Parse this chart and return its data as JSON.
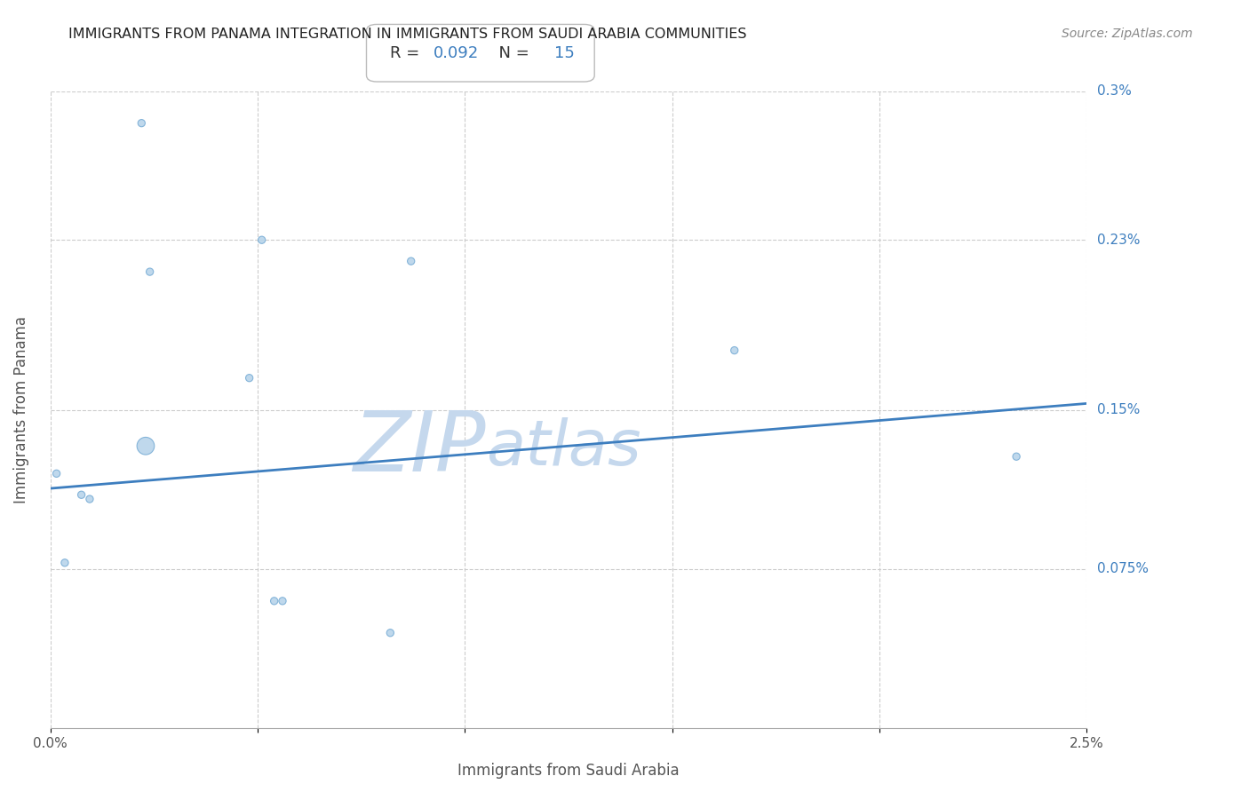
{
  "title": "IMMIGRANTS FROM PANAMA INTEGRATION IN IMMIGRANTS FROM SAUDI ARABIA COMMUNITIES",
  "source": "Source: ZipAtlas.com",
  "xlabel": "Immigrants from Saudi Arabia",
  "ylabel": "Immigrants from Panama",
  "xlim": [
    0.0,
    0.025
  ],
  "ylim": [
    0.0,
    0.003
  ],
  "R": "0.092",
  "N": "15",
  "scatter_x": [
    0.00015,
    0.00035,
    0.00075,
    0.00095,
    0.0022,
    0.0024,
    0.0048,
    0.0051,
    0.0054,
    0.0056,
    0.0082,
    0.0087,
    0.0165,
    0.0233,
    0.0023
  ],
  "scatter_y": [
    0.0012,
    0.00078,
    0.0011,
    0.00108,
    0.00285,
    0.00215,
    0.00165,
    0.0023,
    0.0006,
    0.0006,
    0.00045,
    0.0022,
    0.00178,
    0.00128,
    0.00133
  ],
  "scatter_sizes": [
    35,
    35,
    35,
    35,
    35,
    35,
    35,
    35,
    35,
    35,
    35,
    35,
    35,
    35,
    200
  ],
  "scatter_color": "#b8d4ea",
  "scatter_edgecolor": "#7aaed6",
  "trend_x_start": 0.0,
  "trend_x_end": 0.025,
  "trend_y_start": 0.00113,
  "trend_y_end": 0.00153,
  "trend_color": "#3d7ebf",
  "watermark_top": "ZIP",
  "watermark_bottom": "atlas",
  "watermark_color": "#c5d8ed",
  "background_color": "#ffffff",
  "grid_color": "#cccccc",
  "ytick_vals": [
    0.00075,
    0.0015,
    0.0023,
    0.003
  ],
  "ytick_labels": [
    "0.075%",
    "0.15%",
    "0.23%",
    "0.3%"
  ],
  "xtick_vals": [
    0.0,
    0.005,
    0.01,
    0.015,
    0.02,
    0.025
  ],
  "xtick_labels": [
    "0.0%",
    "",
    "",
    "",
    "",
    "2.5%"
  ],
  "label_color": "#3d7ebf",
  "axis_label_color": "#555555",
  "title_color": "#222222",
  "source_color": "#888888"
}
